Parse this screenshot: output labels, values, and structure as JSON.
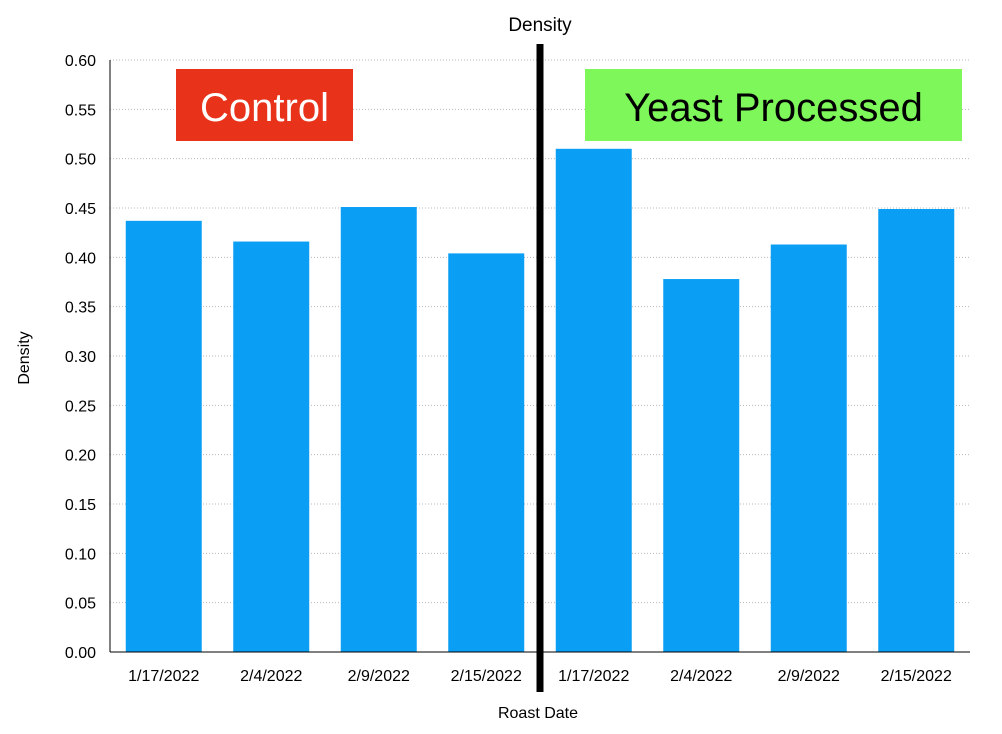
{
  "chart_data": {
    "type": "bar",
    "title": "Density",
    "xlabel": "Roast Date",
    "ylabel": "Density",
    "ylim": [
      0,
      0.6
    ],
    "yticks": [
      "0.00",
      "0.05",
      "0.10",
      "0.15",
      "0.20",
      "0.25",
      "0.30",
      "0.35",
      "0.40",
      "0.45",
      "0.50",
      "0.55",
      "0.60"
    ],
    "grid": true,
    "categories": [
      "1/17/2022",
      "2/4/2022",
      "2/9/2022",
      "2/15/2022",
      "1/17/2022",
      "2/4/2022",
      "2/9/2022",
      "2/15/2022"
    ],
    "values": [
      0.437,
      0.416,
      0.451,
      0.404,
      0.51,
      0.378,
      0.413,
      0.449
    ],
    "bar_color": "#0a9ff5",
    "groups": [
      {
        "label": "Control",
        "color": "#e8321a",
        "text_color": "#ffffff"
      },
      {
        "label": "Yeast Processed",
        "color": "#7ef75a",
        "text_color": "#000000"
      }
    ]
  }
}
